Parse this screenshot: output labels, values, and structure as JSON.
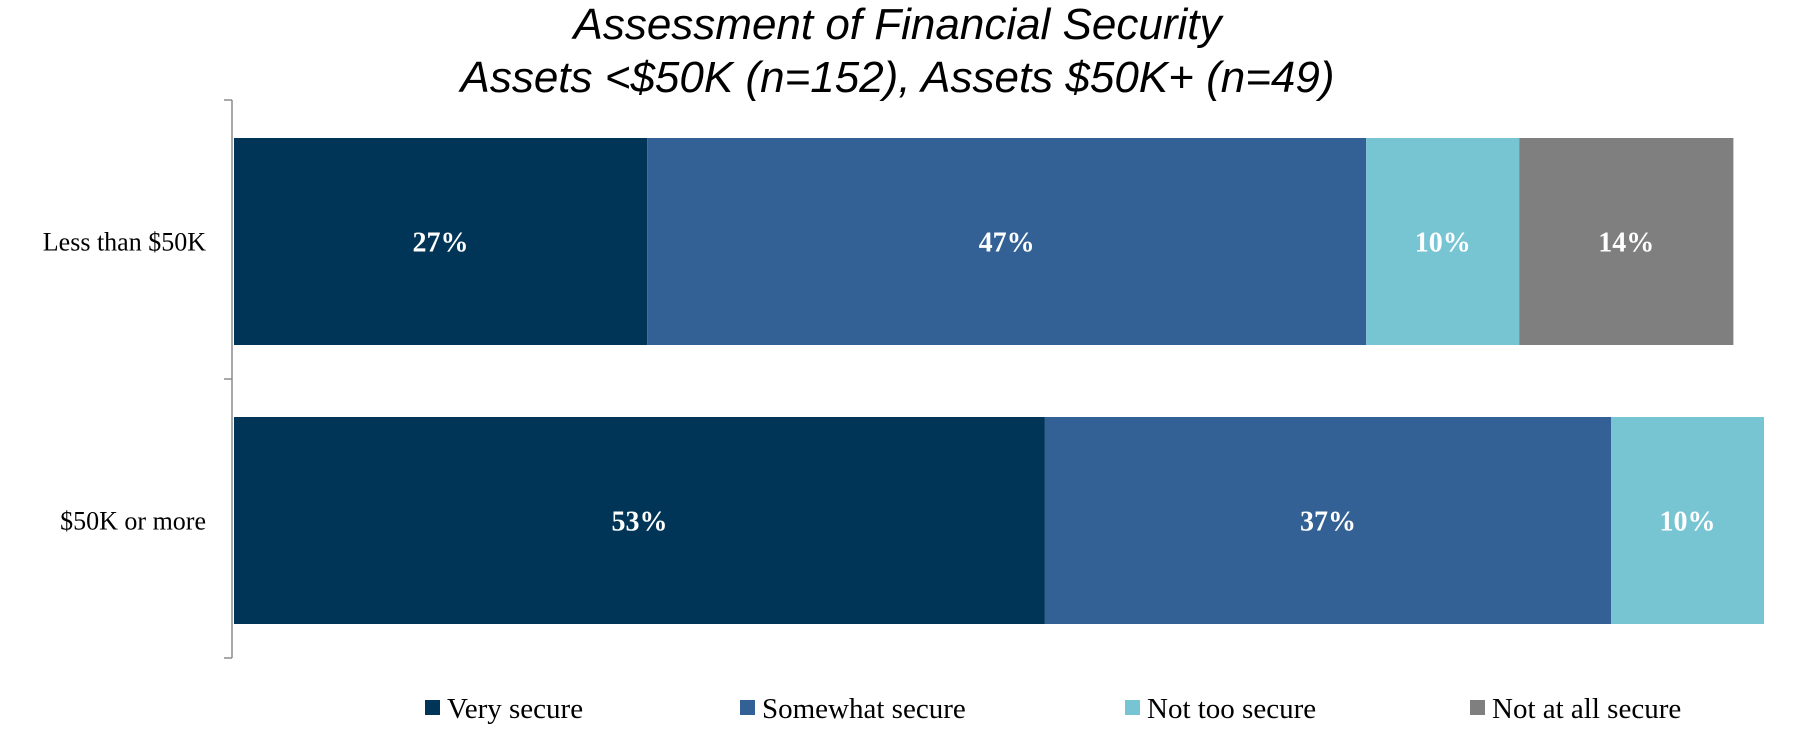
{
  "chart_data": {
    "type": "bar",
    "orientation": "horizontal",
    "stacked": true,
    "title": "Assessment of Financial Security",
    "subtitle": "Assets <$50K (n=152), Assets $50K+ (n=49)",
    "categories": [
      "Less than $50K",
      "$50K or more"
    ],
    "series": [
      {
        "name": "Very secure",
        "color": "#003557",
        "values": [
          27,
          53
        ],
        "labels": [
          "27%",
          "53%"
        ]
      },
      {
        "name": "Somewhat secure",
        "color": "#336196",
        "values": [
          47,
          37
        ],
        "labels": [
          "47%",
          "37%"
        ]
      },
      {
        "name": "Not too secure",
        "color": "#77C4D3",
        "values": [
          10,
          10
        ],
        "labels": [
          "10%",
          "10%"
        ]
      },
      {
        "name": "Not at all secure",
        "color": "#7F7F7F",
        "values": [
          14,
          0
        ],
        "labels": [
          "14%",
          ""
        ]
      }
    ],
    "xlim": [
      0,
      100
    ],
    "grid": false,
    "legend_position": "bottom"
  }
}
